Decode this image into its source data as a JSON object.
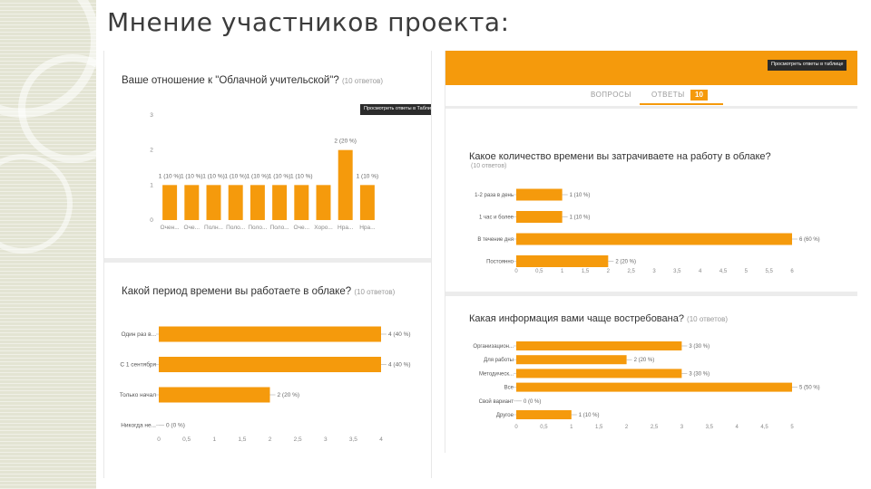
{
  "slide_title": "Мнение участников проекта:",
  "colors": {
    "bar": "#f59a0c",
    "header": "#f59a0c",
    "axis_text": "#888888",
    "title_text": "#333333"
  },
  "left_panel": {
    "view_table_button": "Просмотреть ответы в Таблицах"
  },
  "right_panel": {
    "view_table_button": "Просмотреть ответы в таблице",
    "tab_questions": "ВОПРОСЫ",
    "tab_answers": "ОТВЕТЫ",
    "answers_count": "10"
  },
  "chart_data": [
    {
      "id": "attitude",
      "type": "bar",
      "orientation": "vertical",
      "title": "Ваше отношение к \"Облачной учительской\"?",
      "responses": "(10 ответов)",
      "ylim": [
        0,
        3
      ],
      "yticks": [
        0,
        1,
        2,
        3
      ],
      "ytick_labels": [
        "0",
        "1",
        "2",
        "3"
      ],
      "categories": [
        "Очен...",
        "Оче...",
        "Полн...",
        "Поло...",
        "Поло...",
        "Поло...",
        "Оче...",
        "Хоро...",
        "Нра...",
        "Нра..."
      ],
      "values": [
        1,
        1,
        1,
        1,
        1,
        1,
        1,
        1,
        2,
        1
      ],
      "labels": [
        "1 (10 %)",
        "1 (10 %)",
        "1 (10 %)",
        "1 (10 %)",
        "1 (10 %)",
        "1 (10 %)",
        "1 (10 %)",
        "",
        "2 (20 %)",
        "1 (10 %)"
      ]
    },
    {
      "id": "period",
      "type": "bar",
      "orientation": "horizontal",
      "title": "Какой период времени вы работаете в облаке?",
      "responses": "(10 ответов)",
      "xlim": [
        0,
        4
      ],
      "xticks": [
        0,
        0.5,
        1,
        1.5,
        2,
        2.5,
        3,
        3.5,
        4
      ],
      "xtick_labels": [
        "0",
        "0,5",
        "1",
        "1,5",
        "2",
        "2,5",
        "3",
        "3,5",
        "4"
      ],
      "categories": [
        "Один раз в...",
        "С 1 сентября",
        "Только начал",
        "Никогда не..."
      ],
      "values": [
        4,
        4,
        2,
        0
      ],
      "labels": [
        "4 (40 %)",
        "4 (40 %)",
        "2 (20 %)",
        "0 (0 %)"
      ]
    },
    {
      "id": "time",
      "type": "bar",
      "orientation": "horizontal",
      "title": "Какое количество времени вы затрачиваете на работу в облаке?",
      "responses": "(10 ответов)",
      "xlim": [
        0,
        6
      ],
      "xticks": [
        0,
        0.5,
        1,
        1.5,
        2,
        2.5,
        3,
        3.5,
        4,
        4.5,
        5,
        5.5,
        6
      ],
      "xtick_labels": [
        "0",
        "0,5",
        "1",
        "1,5",
        "2",
        "2,5",
        "3",
        "3,5",
        "4",
        "4,5",
        "5",
        "5,5",
        "6"
      ],
      "categories": [
        "1-2 раза в день",
        "1 час и более",
        "В течение дня",
        "Постоянно"
      ],
      "values": [
        1,
        1,
        6,
        2
      ],
      "labels": [
        "1 (10 %)",
        "1 (10 %)",
        "6 (60 %)",
        "2 (20 %)"
      ]
    },
    {
      "id": "info",
      "type": "bar",
      "orientation": "horizontal",
      "title": "Какая информация вами чаще востребована?",
      "responses": "(10 ответов)",
      "xlim": [
        0,
        5
      ],
      "xticks": [
        0,
        0.5,
        1,
        1.5,
        2,
        2.5,
        3,
        3.5,
        4,
        4.5,
        5
      ],
      "xtick_labels": [
        "0",
        "0,5",
        "1",
        "1,5",
        "2",
        "2,5",
        "3",
        "3,5",
        "4",
        "4,5",
        "5"
      ],
      "categories": [
        "Организацион...",
        "Для работы",
        "Методическ...",
        "Все",
        "Свой вариант",
        "Другое"
      ],
      "values": [
        3,
        2,
        3,
        5,
        0,
        1
      ],
      "labels": [
        "3 (30 %)",
        "2 (20 %)",
        "3 (30 %)",
        "5 (50 %)",
        "0 (0 %)",
        "1 (10 %)"
      ]
    }
  ]
}
